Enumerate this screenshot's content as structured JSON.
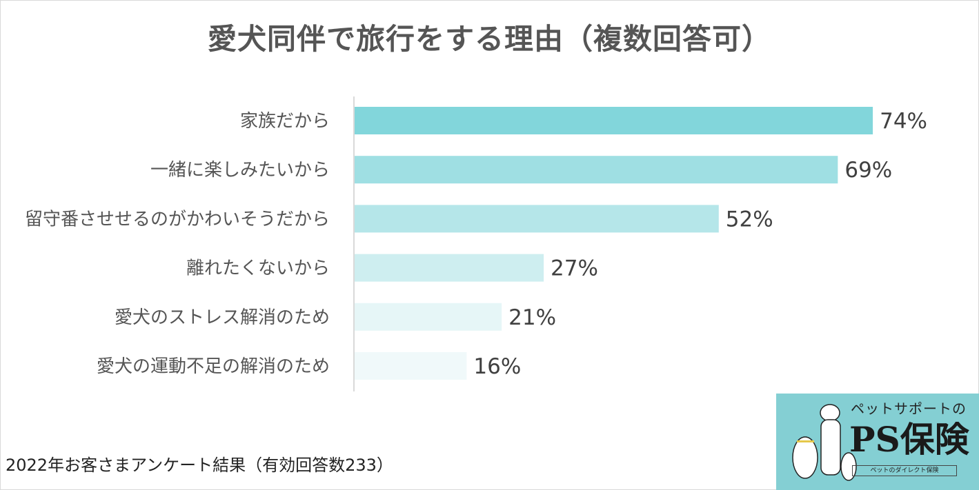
{
  "chart_data": {
    "type": "bar",
    "orientation": "horizontal",
    "title": "愛犬同伴で旅行をする理由（複数回答可）",
    "categories": [
      "家族だから",
      "一緒に楽しみたいから",
      "留守番させせるのがかわいそうだから",
      "離れたくないから",
      "愛犬のストレス解消のため",
      "愛犬の運動不足の解消のため"
    ],
    "values": [
      74,
      69,
      52,
      27,
      21,
      16
    ],
    "value_labels": [
      "74%",
      "69%",
      "52%",
      "27%",
      "21%",
      "16%"
    ],
    "colors": [
      "#82d6db",
      "#9fdfe3",
      "#b5e6e9",
      "#ceeef0",
      "#e6f6f7",
      "#f0f9fa"
    ],
    "xlabel": "",
    "ylabel": "",
    "xlim": [
      0,
      100
    ],
    "grid": false,
    "legend": "none"
  },
  "footnote": "2022年お客さまアンケート結果（有効回答数233）",
  "logo": {
    "sub": "ペットサポートの",
    "main": "PS保険",
    "tag": "ペットのダイレクト保険"
  }
}
